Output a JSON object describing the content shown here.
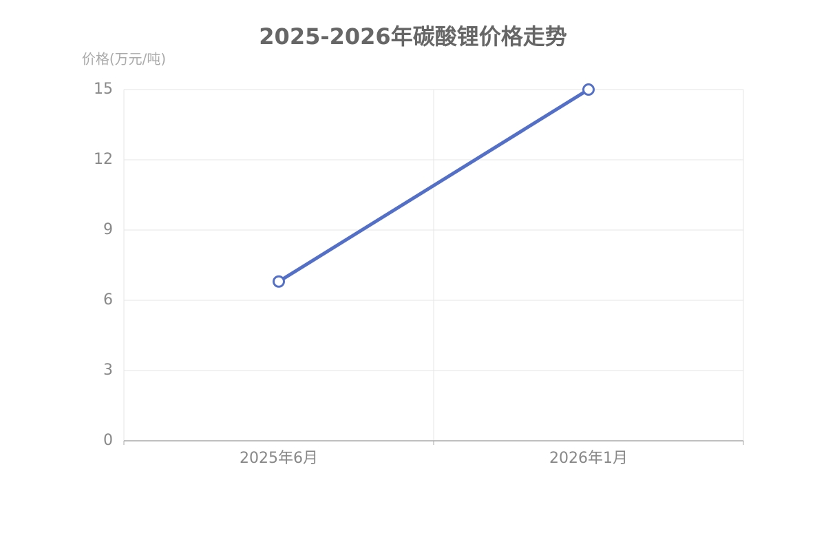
{
  "chart_data": {
    "type": "line",
    "title": "2025-2026年碳酸锂价格走势",
    "y_label": "价格(万元/吨)",
    "categories": [
      "2025年6月",
      "2026年1月"
    ],
    "values": [
      6.8,
      15
    ],
    "color": "#5470c6",
    "ylim": [
      0,
      15
    ],
    "yticks": [
      0,
      3,
      6,
      9,
      12,
      15
    ],
    "grid": true
  }
}
